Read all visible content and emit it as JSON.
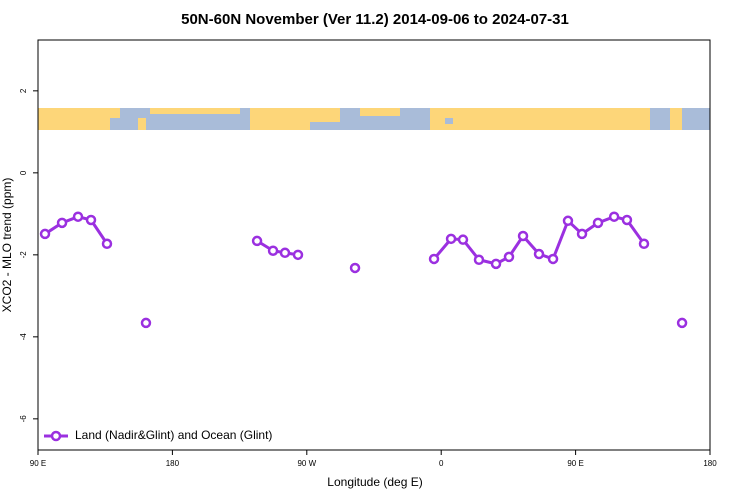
{
  "chart_data": {
    "type": "line",
    "title": "50N-60N November (Ver 11.2)   2014-09-06 to 2024-07-31",
    "x_label": "Longitude (deg E)",
    "y_label": "XCO2 - MLO trend (ppm)",
    "xlim": [
      90,
      540
    ],
    "ylim": [
      -6.76,
      3.24
    ],
    "xticks": [
      {
        "value": 90,
        "label": "90 E"
      },
      180,
      {
        "value": 270,
        "label": "90 W"
      },
      {
        "value": 360,
        "label": "0"
      },
      {
        "value": 450,
        "label": "90 E"
      },
      {
        "value": 540,
        "label": "180"
      }
    ],
    "yticks": [
      2,
      0,
      -2,
      -4,
      -6
    ],
    "legend": "bottom-left",
    "series": [
      {
        "name": "Land (Nadir&Glint) and Ocean (Glint)",
        "color": "#9b30e0",
        "x": [
          94.7,
          106.1,
          116.8,
          125.5,
          136.2,
          null,
          162.3,
          null,
          236.7,
          247.4,
          255.4,
          264.1,
          null,
          302.3,
          null,
          355.2,
          366.6,
          374.6,
          385.3,
          396.7,
          405.4,
          414.8,
          425.5,
          434.9,
          444.9,
          454.3,
          465.0,
          475.8,
          484.4,
          495.8,
          null,
          521.3
        ],
        "values": [
          -1.49,
          -1.22,
          -1.07,
          -1.15,
          -1.73,
          null,
          -3.66,
          null,
          -1.66,
          -1.9,
          -1.95,
          -2.0,
          null,
          -2.32,
          null,
          -2.1,
          -1.61,
          -1.63,
          -2.12,
          -2.22,
          -2.05,
          -1.54,
          -1.98,
          -2.1,
          -1.17,
          -1.49,
          -1.22,
          -1.07,
          -1.15,
          -1.73,
          null,
          -3.66
        ]
      }
    ]
  }
}
